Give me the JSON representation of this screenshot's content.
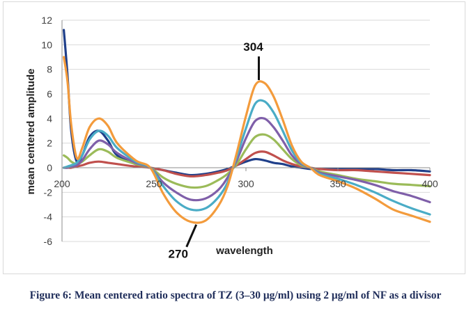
{
  "chart_data": {
    "type": "line",
    "ylabel": "mean centered amplitude",
    "xlabel": "wavelength",
    "xlim": [
      200,
      400
    ],
    "ylim": [
      -6,
      12
    ],
    "x_ticks": [
      "200",
      "250",
      "300",
      "350",
      "400"
    ],
    "y_ticks": [
      "12",
      "10",
      "8",
      "6",
      "4",
      "2",
      "0",
      "-2",
      "-4",
      "-6"
    ],
    "grid": "horizontal",
    "annotations": [
      {
        "text": "304",
        "x": 307,
        "y": 6.9
      },
      {
        "text": "270",
        "x": 273,
        "y": -4.4
      }
    ],
    "x": [
      201,
      203,
      205,
      208,
      211,
      215,
      220,
      225,
      230,
      240,
      248,
      255,
      262,
      270,
      278,
      285,
      290,
      295,
      300,
      305,
      310,
      315,
      320,
      325,
      330,
      335,
      340,
      350,
      360,
      370,
      380,
      390,
      400
    ],
    "series": [
      {
        "color": "#1f3f8a",
        "values": [
          11.2,
          7.5,
          3.0,
          0.5,
          1.0,
          2.5,
          3.0,
          2.2,
          1.0,
          0.3,
          0.0,
          -0.2,
          -0.4,
          -0.6,
          -0.5,
          -0.3,
          -0.1,
          0.2,
          0.5,
          0.7,
          0.6,
          0.4,
          0.3,
          0.1,
          0.0,
          -0.1,
          -0.1,
          -0.1,
          -0.1,
          -0.1,
          -0.2,
          -0.2,
          -0.3
        ]
      },
      {
        "color": "#c0504d",
        "values": [
          0.0,
          0.0,
          0.0,
          0.1,
          0.2,
          0.4,
          0.5,
          0.4,
          0.3,
          0.1,
          0.0,
          -0.2,
          -0.5,
          -0.7,
          -0.6,
          -0.4,
          -0.2,
          0.2,
          0.7,
          1.2,
          1.3,
          1.0,
          0.6,
          0.3,
          0.1,
          0.0,
          -0.1,
          -0.2,
          -0.2,
          -0.3,
          -0.4,
          -0.5,
          -0.6
        ]
      },
      {
        "color": "#9bbb59",
        "values": [
          1.0,
          0.8,
          0.5,
          0.3,
          0.5,
          1.0,
          1.5,
          1.3,
          0.8,
          0.3,
          0.0,
          -0.8,
          -1.3,
          -1.6,
          -1.5,
          -1.0,
          -0.5,
          0.3,
          1.5,
          2.5,
          2.7,
          2.3,
          1.5,
          0.7,
          0.2,
          0.0,
          -0.3,
          -0.6,
          -0.9,
          -1.1,
          -1.3,
          -1.4,
          -1.5
        ]
      },
      {
        "color": "#7f5fa9",
        "values": [
          0.0,
          0.0,
          0.1,
          0.2,
          0.6,
          1.5,
          2.2,
          1.9,
          1.2,
          0.4,
          0.0,
          -1.2,
          -2.0,
          -2.6,
          -2.5,
          -1.8,
          -0.8,
          0.6,
          2.4,
          3.8,
          4.0,
          3.3,
          2.2,
          1.0,
          0.3,
          0.0,
          -0.4,
          -0.7,
          -1.0,
          -1.4,
          -1.9,
          -2.3,
          -2.8
        ]
      },
      {
        "color": "#4aacc6",
        "values": [
          0.0,
          0.1,
          0.2,
          0.4,
          1.0,
          2.3,
          3.0,
          2.6,
          1.6,
          0.5,
          0.0,
          -1.5,
          -2.7,
          -3.4,
          -3.3,
          -2.4,
          -1.2,
          0.9,
          3.2,
          5.2,
          5.4,
          4.5,
          3.0,
          1.4,
          0.4,
          0.0,
          -0.5,
          -0.9,
          -1.4,
          -2.0,
          -2.7,
          -3.3,
          -3.8
        ]
      },
      {
        "color": "#f39b3c",
        "values": [
          9.0,
          7.0,
          3.5,
          0.8,
          1.6,
          3.3,
          4.0,
          3.4,
          2.0,
          0.6,
          0.0,
          -2.1,
          -3.6,
          -4.4,
          -4.3,
          -3.1,
          -1.5,
          1.2,
          4.2,
          6.7,
          6.9,
          5.8,
          3.9,
          1.8,
          0.5,
          0.0,
          -0.6,
          -1.1,
          -1.7,
          -2.5,
          -3.4,
          -3.9,
          -4.4
        ]
      }
    ]
  },
  "caption": "Figure 6: Mean centered ratio spectra of TZ (3–30 μg/ml) using 2 μg/ml of NF as a divisor"
}
